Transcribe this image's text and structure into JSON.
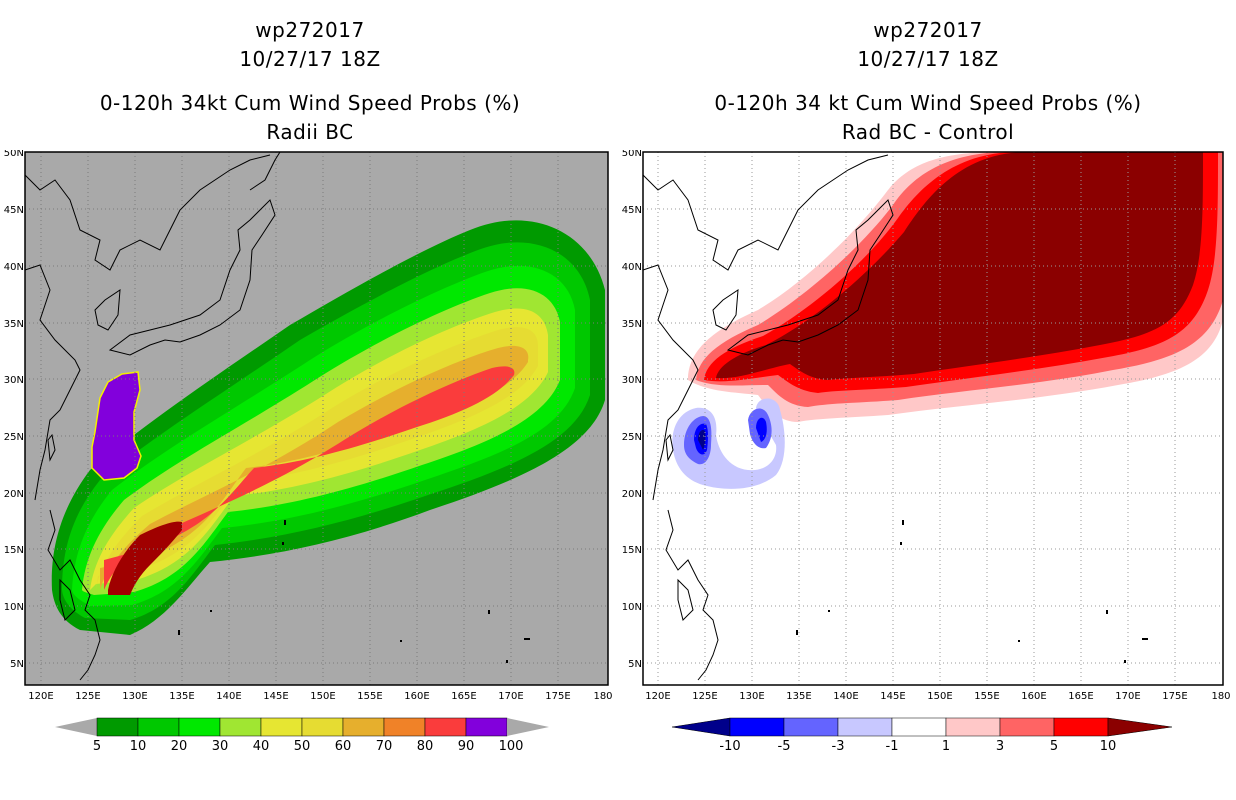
{
  "left": {
    "storm_id": "wp272017",
    "datetime": "10/27/17 18Z",
    "title": "0-120h 34kt Cum Wind Speed Probs (%)",
    "subtitle": "Radii BC",
    "colorbar": {
      "labels": [
        "5",
        "10",
        "20",
        "30",
        "40",
        "50",
        "60",
        "70",
        "80",
        "90",
        "100"
      ],
      "colors": [
        "#009a00",
        "#00c800",
        "#00e800",
        "#a0e632",
        "#e6e632",
        "#e6dc32",
        "#e6af2d",
        "#f08228",
        "#fa3c3c",
        "#a00000",
        "#8200dc"
      ]
    }
  },
  "right": {
    "storm_id": "wp272017",
    "datetime": "10/27/17 18Z",
    "title": "0-120h 34 kt Cum Wind Speed Probs (%)",
    "subtitle": "Rad BC - Control",
    "colorbar": {
      "labels": [
        "-10",
        "-5",
        "-3",
        "-1",
        "1",
        "3",
        "5",
        "10"
      ],
      "colors": [
        "#00008b",
        "#0000ff",
        "#6464ff",
        "#c8c8ff",
        "#ffffff",
        "#ffc8c8",
        "#ff6464",
        "#ff0000",
        "#8b0000"
      ]
    }
  },
  "axes": {
    "lon_labels": [
      "120E",
      "125E",
      "130E",
      "135E",
      "140E",
      "145E",
      "150E",
      "155E",
      "160E",
      "165E",
      "170E",
      "175E",
      "180"
    ],
    "lat_labels": [
      "50N",
      "45N",
      "40N",
      "35N",
      "30N",
      "25N",
      "20N",
      "15N",
      "10N",
      "5N"
    ],
    "lon_range": [
      119,
      181
    ],
    "lat_range": [
      3,
      50
    ]
  },
  "colors": {
    "background_gray": "#a9a9a9",
    "grid": "#7a7a7a"
  }
}
